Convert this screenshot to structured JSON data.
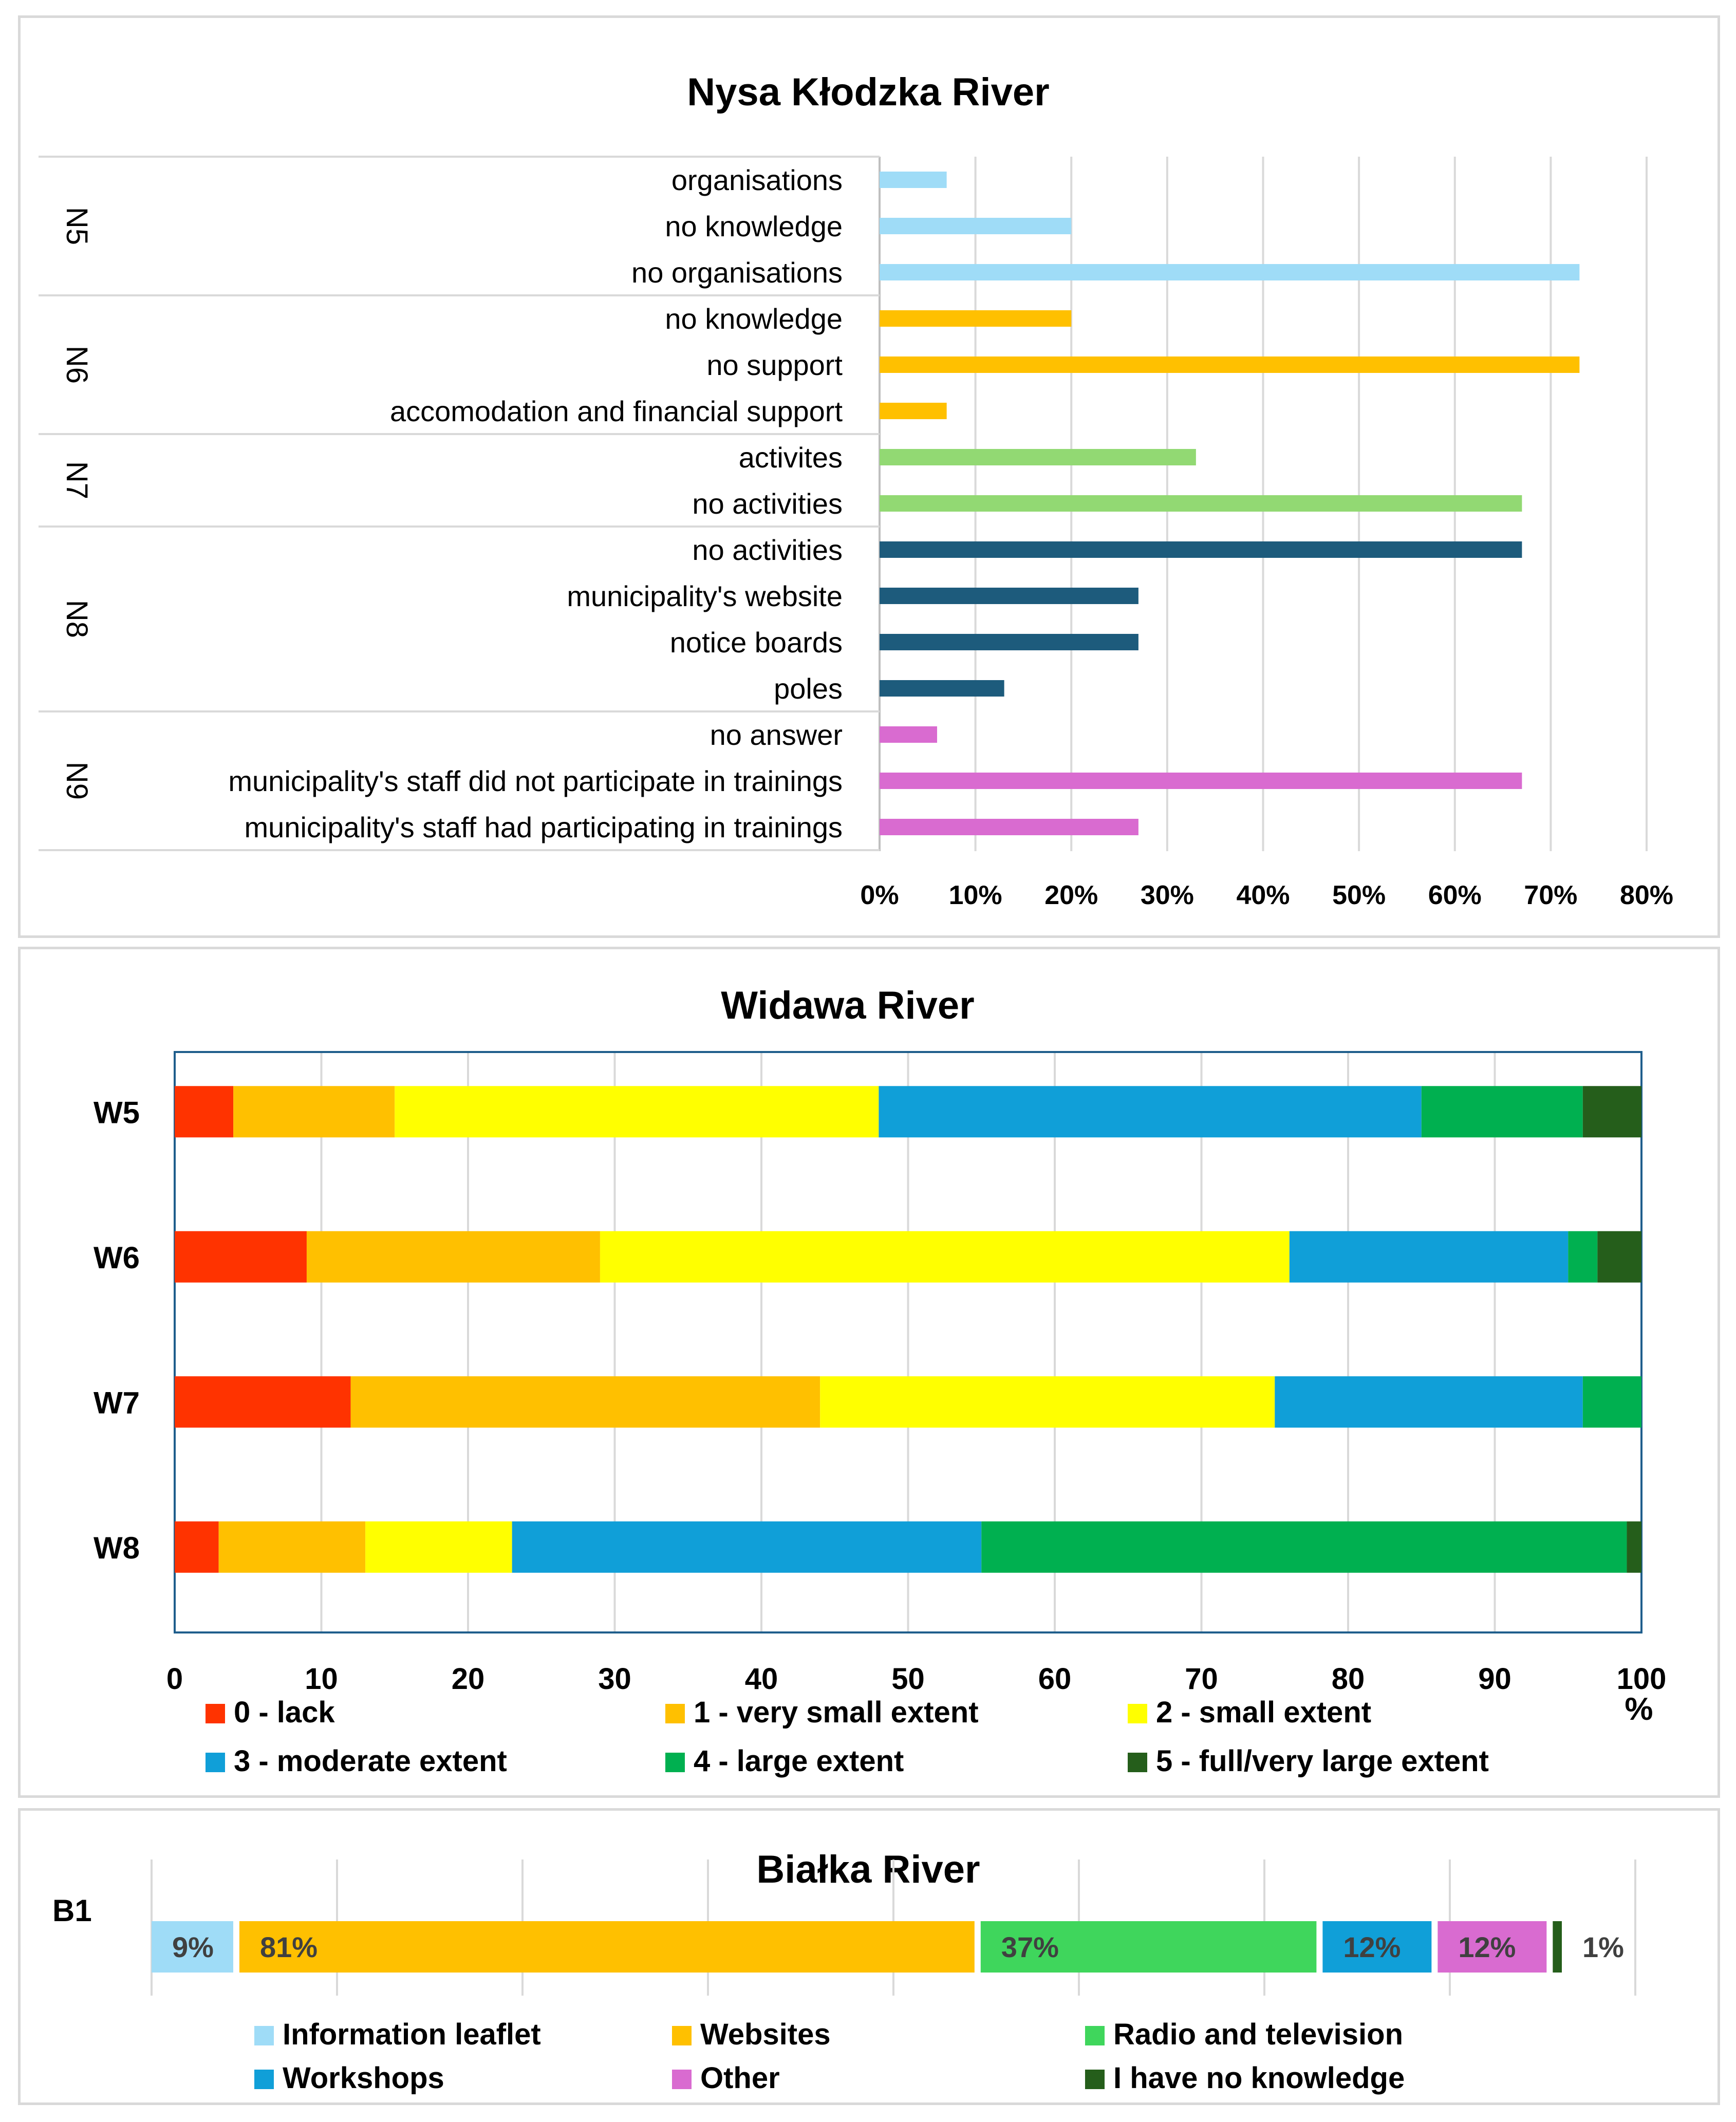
{
  "chart_data": [
    {
      "type": "bar",
      "orientation": "horizontal",
      "title": "Nysa Kłodzka River",
      "xlim": [
        0,
        80
      ],
      "xticks": [
        "0%",
        "10%",
        "20%",
        "30%",
        "40%",
        "50%",
        "60%",
        "70%",
        "80%"
      ],
      "grid": true,
      "groups": [
        {
          "label": "N5",
          "color": "#9fdcf7",
          "items": [
            {
              "label": "organisations",
              "value": 7
            },
            {
              "label": "no knowledge",
              "value": 20
            },
            {
              "label": "no organisations",
              "value": 73
            }
          ]
        },
        {
          "label": "N6",
          "color": "#ffc000",
          "items": [
            {
              "label": "no knowledge",
              "value": 20
            },
            {
              "label": "no support",
              "value": 73
            },
            {
              "label": "accomodation and financial support",
              "value": 7
            }
          ]
        },
        {
          "label": "N7",
          "color": "#92d973",
          "items": [
            {
              "label": "activites",
              "value": 33
            },
            {
              "label": "no activities",
              "value": 67
            }
          ]
        },
        {
          "label": "N8",
          "color": "#1d5b7c",
          "items": [
            {
              "label": "no activities",
              "value": 67
            },
            {
              "label": "municipality's website",
              "value": 27
            },
            {
              "label": "notice boards",
              "value": 27
            },
            {
              "label": "poles",
              "value": 13
            }
          ]
        },
        {
          "label": "N9",
          "color": "#d96bd0",
          "items": [
            {
              "label": "no answer",
              "value": 6
            },
            {
              "label": "municipality's staff did not participate in trainings",
              "value": 67
            },
            {
              "label": "municipality's staff had participating in trainings",
              "value": 27
            }
          ]
        }
      ]
    },
    {
      "type": "bar",
      "orientation": "horizontal",
      "stacked": true,
      "title": "Widawa River",
      "xlim": [
        0,
        100
      ],
      "xticks": [
        "0",
        "10",
        "20",
        "30",
        "40",
        "50",
        "60",
        "70",
        "80",
        "90",
        "100"
      ],
      "xlabel": "%",
      "grid": true,
      "categories": [
        "W5",
        "W6",
        "W7",
        "W8"
      ],
      "series": [
        {
          "name": "0 - lack",
          "color": "#ff3300",
          "values": [
            4,
            9,
            12,
            3
          ]
        },
        {
          "name": "1 - very small extent",
          "color": "#ffc000",
          "values": [
            11,
            20,
            32,
            10
          ]
        },
        {
          "name": "2 - small extent",
          "color": "#ffff00",
          "values": [
            33,
            47,
            31,
            10
          ]
        },
        {
          "name": "3 - moderate extent",
          "color": "#109fd8",
          "values": [
            37,
            19,
            21,
            32
          ]
        },
        {
          "name": "4 - large extent",
          "color": "#00b050",
          "values": [
            11,
            2,
            4,
            44
          ]
        },
        {
          "name": "5 - full/very large extent",
          "color": "#255e1b",
          "values": [
            4,
            3,
            0,
            1
          ]
        }
      ]
    },
    {
      "type": "bar",
      "orientation": "horizontal",
      "stacked": true,
      "title": "Białka River",
      "categories": [
        "B1"
      ],
      "series": [
        {
          "name": "Information leaflet",
          "color": "#9fdcf7",
          "values": [
            9
          ],
          "label": "9%"
        },
        {
          "name": "Websites",
          "color": "#ffc000",
          "values": [
            81
          ],
          "label": "81%"
        },
        {
          "name": "Radio and television",
          "color": "#3fd65c",
          "values": [
            37
          ],
          "label": "37%"
        },
        {
          "name": "Workshops",
          "color": "#109fd8",
          "values": [
            12
          ],
          "label": "12%"
        },
        {
          "name": "Other",
          "color": "#d96bd0",
          "values": [
            12
          ],
          "label": "12%"
        },
        {
          "name": "I have no knowledge",
          "color": "#255e1b",
          "values": [
            1
          ],
          "label": "1%"
        }
      ]
    }
  ]
}
